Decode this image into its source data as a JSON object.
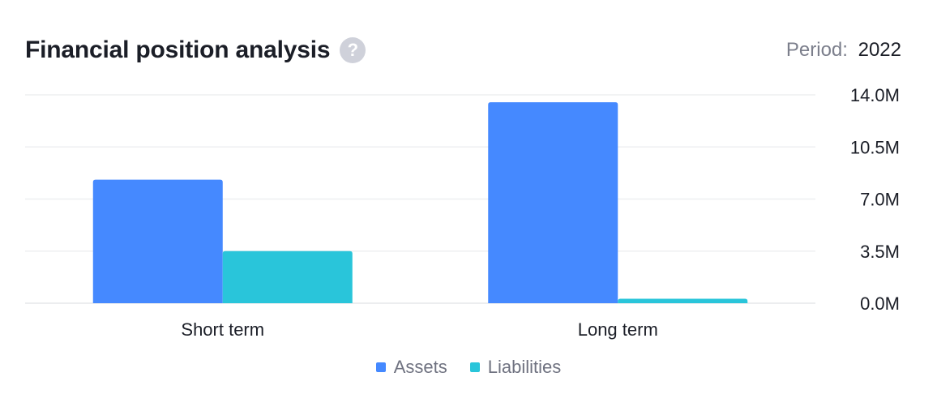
{
  "header": {
    "title": "Financial position analysis",
    "help_icon": "question-circle-icon",
    "period_label": "Period:",
    "period_value": "2022"
  },
  "chart_data": {
    "type": "bar",
    "title": "Financial position analysis",
    "xlabel": "",
    "ylabel": "",
    "categories": [
      "Short term",
      "Long term"
    ],
    "series": [
      {
        "name": "Assets",
        "color": "#4589ff",
        "values": [
          8.3,
          13.5
        ]
      },
      {
        "name": "Liabilities",
        "color": "#29c5da",
        "values": [
          3.5,
          0.3
        ]
      }
    ],
    "y_ticks": [
      "0.0M",
      "3.5M",
      "7.0M",
      "10.5M",
      "14.0M"
    ],
    "y_tick_values": [
      0,
      3.5,
      7.0,
      10.5,
      14.0
    ],
    "ylim": [
      0,
      14.0
    ],
    "y_unit": "M",
    "grid": true,
    "legend_position": "bottom"
  }
}
